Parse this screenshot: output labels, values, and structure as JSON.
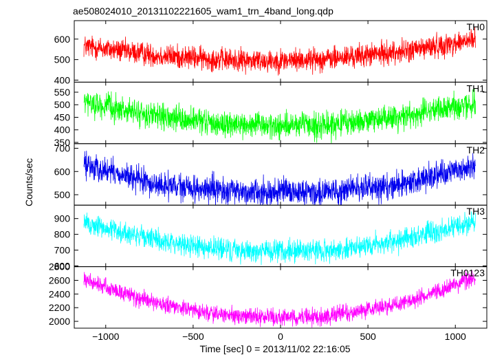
{
  "chart_data": {
    "type": "line",
    "title": "ae508024010_20131102221605_wam1_trn_4band_long.qdp",
    "ylabel": "Counts/sec",
    "xlabel": "Time [sec] 0 = 2013/11/02 22:16:05",
    "xlim": [
      -1180,
      1180
    ],
    "xticks": [
      -1000,
      -500,
      0,
      500,
      1000
    ],
    "xtick_labels": [
      "−1000",
      "−500",
      "0",
      "500",
      "1000"
    ],
    "data_x_range": [
      -1125,
      1115
    ],
    "grid": false,
    "panels": [
      {
        "name": "TH0",
        "color": "#ff0000",
        "ylim": [
          390,
          690
        ],
        "yticks": [
          400,
          500,
          600
        ],
        "ytick_labels": [
          "400",
          "500",
          "600"
        ],
        "trend": [
          {
            "x": -1120,
            "y": 565
          },
          {
            "x": -700,
            "y": 520
          },
          {
            "x": -300,
            "y": 498
          },
          {
            "x": 0,
            "y": 495
          },
          {
            "x": 300,
            "y": 505
          },
          {
            "x": 700,
            "y": 540
          },
          {
            "x": 1110,
            "y": 595
          }
        ],
        "noise": 28
      },
      {
        "name": "TH1",
        "color": "#00ff00",
        "ylim": [
          345,
          590
        ],
        "yticks": [
          350,
          400,
          450,
          500,
          550
        ],
        "ytick_labels": [
          "350",
          "400",
          "450",
          "500",
          "550"
        ],
        "trend": [
          {
            "x": -1120,
            "y": 510
          },
          {
            "x": -700,
            "y": 450
          },
          {
            "x": -300,
            "y": 420
          },
          {
            "x": 0,
            "y": 415
          },
          {
            "x": 300,
            "y": 420
          },
          {
            "x": 700,
            "y": 455
          },
          {
            "x": 1110,
            "y": 505
          }
        ],
        "noise": 25
      },
      {
        "name": "TH2",
        "color": "#0000ee",
        "ylim": [
          455,
          720
        ],
        "yticks": [
          500,
          600,
          700
        ],
        "ytick_labels": [
          "500",
          "600",
          "700"
        ],
        "trend": [
          {
            "x": -1120,
            "y": 630
          },
          {
            "x": -700,
            "y": 540
          },
          {
            "x": -300,
            "y": 515
          },
          {
            "x": 0,
            "y": 510
          },
          {
            "x": 300,
            "y": 515
          },
          {
            "x": 700,
            "y": 545
          },
          {
            "x": 1110,
            "y": 625
          }
        ],
        "noise": 28
      },
      {
        "name": "TH3",
        "color": "#00ffff",
        "ylim": [
          595,
          985
        ],
        "yticks": [
          600,
          700,
          800,
          900
        ],
        "ytick_labels": [
          "600",
          "700",
          "800",
          "900"
        ],
        "trend": [
          {
            "x": -1120,
            "y": 870
          },
          {
            "x": -700,
            "y": 760
          },
          {
            "x": -300,
            "y": 700
          },
          {
            "x": 0,
            "y": 690
          },
          {
            "x": 300,
            "y": 700
          },
          {
            "x": 700,
            "y": 760
          },
          {
            "x": 1110,
            "y": 880
          }
        ],
        "noise": 35
      },
      {
        "name": "TH0123",
        "color": "#ff00ff",
        "ylim": [
          1900,
          2800
        ],
        "yticks": [
          2000,
          2200,
          2400,
          2600,
          2800
        ],
        "ytick_labels": [
          "2000",
          "2200",
          "2400",
          "2600",
          "2800"
        ],
        "trend": [
          {
            "x": -1120,
            "y": 2600
          },
          {
            "x": -700,
            "y": 2250
          },
          {
            "x": -300,
            "y": 2080
          },
          {
            "x": 0,
            "y": 2060
          },
          {
            "x": 300,
            "y": 2080
          },
          {
            "x": 700,
            "y": 2260
          },
          {
            "x": 1110,
            "y": 2640
          }
        ],
        "noise": 60
      }
    ]
  }
}
